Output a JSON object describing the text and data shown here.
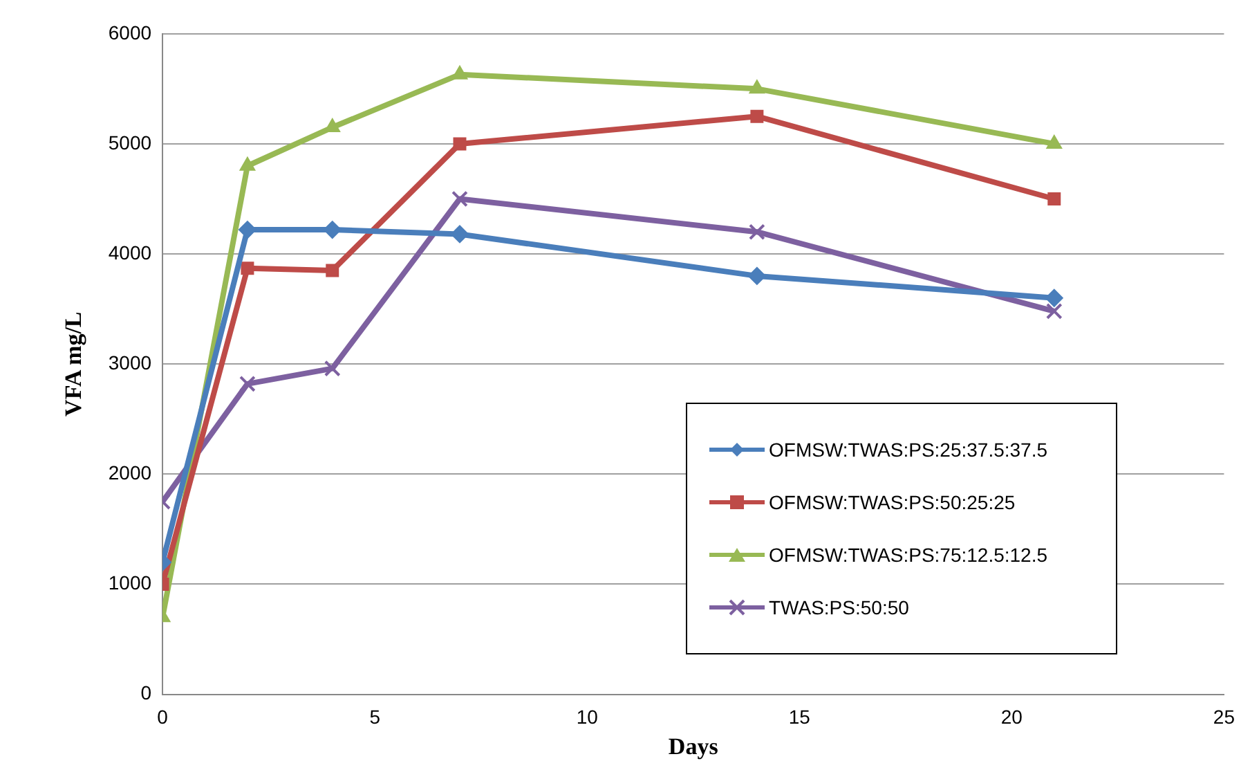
{
  "chart_data": {
    "type": "line",
    "xlabel": "Days",
    "ylabel": "VFA mg/L",
    "x": [
      0,
      2,
      4,
      7,
      14,
      21
    ],
    "xlim": [
      0,
      25
    ],
    "xticks": [
      0,
      5,
      10,
      15,
      20,
      25
    ],
    "ylim": [
      0,
      6000
    ],
    "yticks": [
      0,
      1000,
      2000,
      3000,
      4000,
      5000,
      6000
    ],
    "grid": "y",
    "legend": "bottom right",
    "line_style": "solid",
    "series": [
      {
        "name": "OFMSW:TWAS:PS:25:37.5:37.5",
        "color": "#4a7ebb",
        "marker": "diamond",
        "values": [
          1200,
          4220,
          4220,
          4180,
          3800,
          3600
        ]
      },
      {
        "name": "OFMSW:TWAS:PS:50:25:25",
        "color": "#be4b48",
        "marker": "square",
        "values": [
          1000,
          3870,
          3850,
          5000,
          5250,
          4500
        ]
      },
      {
        "name": "OFMSW:TWAS:PS:75:12.5:12.5",
        "color": "#98b954",
        "marker": "triangle",
        "values": [
          700,
          4800,
          5150,
          5630,
          5500,
          5000
        ]
      },
      {
        "name": "TWAS:PS:50:50",
        "color": "#7d60a0",
        "marker": "cross",
        "values": [
          1750,
          2820,
          2960,
          4500,
          4200,
          3480
        ]
      }
    ]
  }
}
